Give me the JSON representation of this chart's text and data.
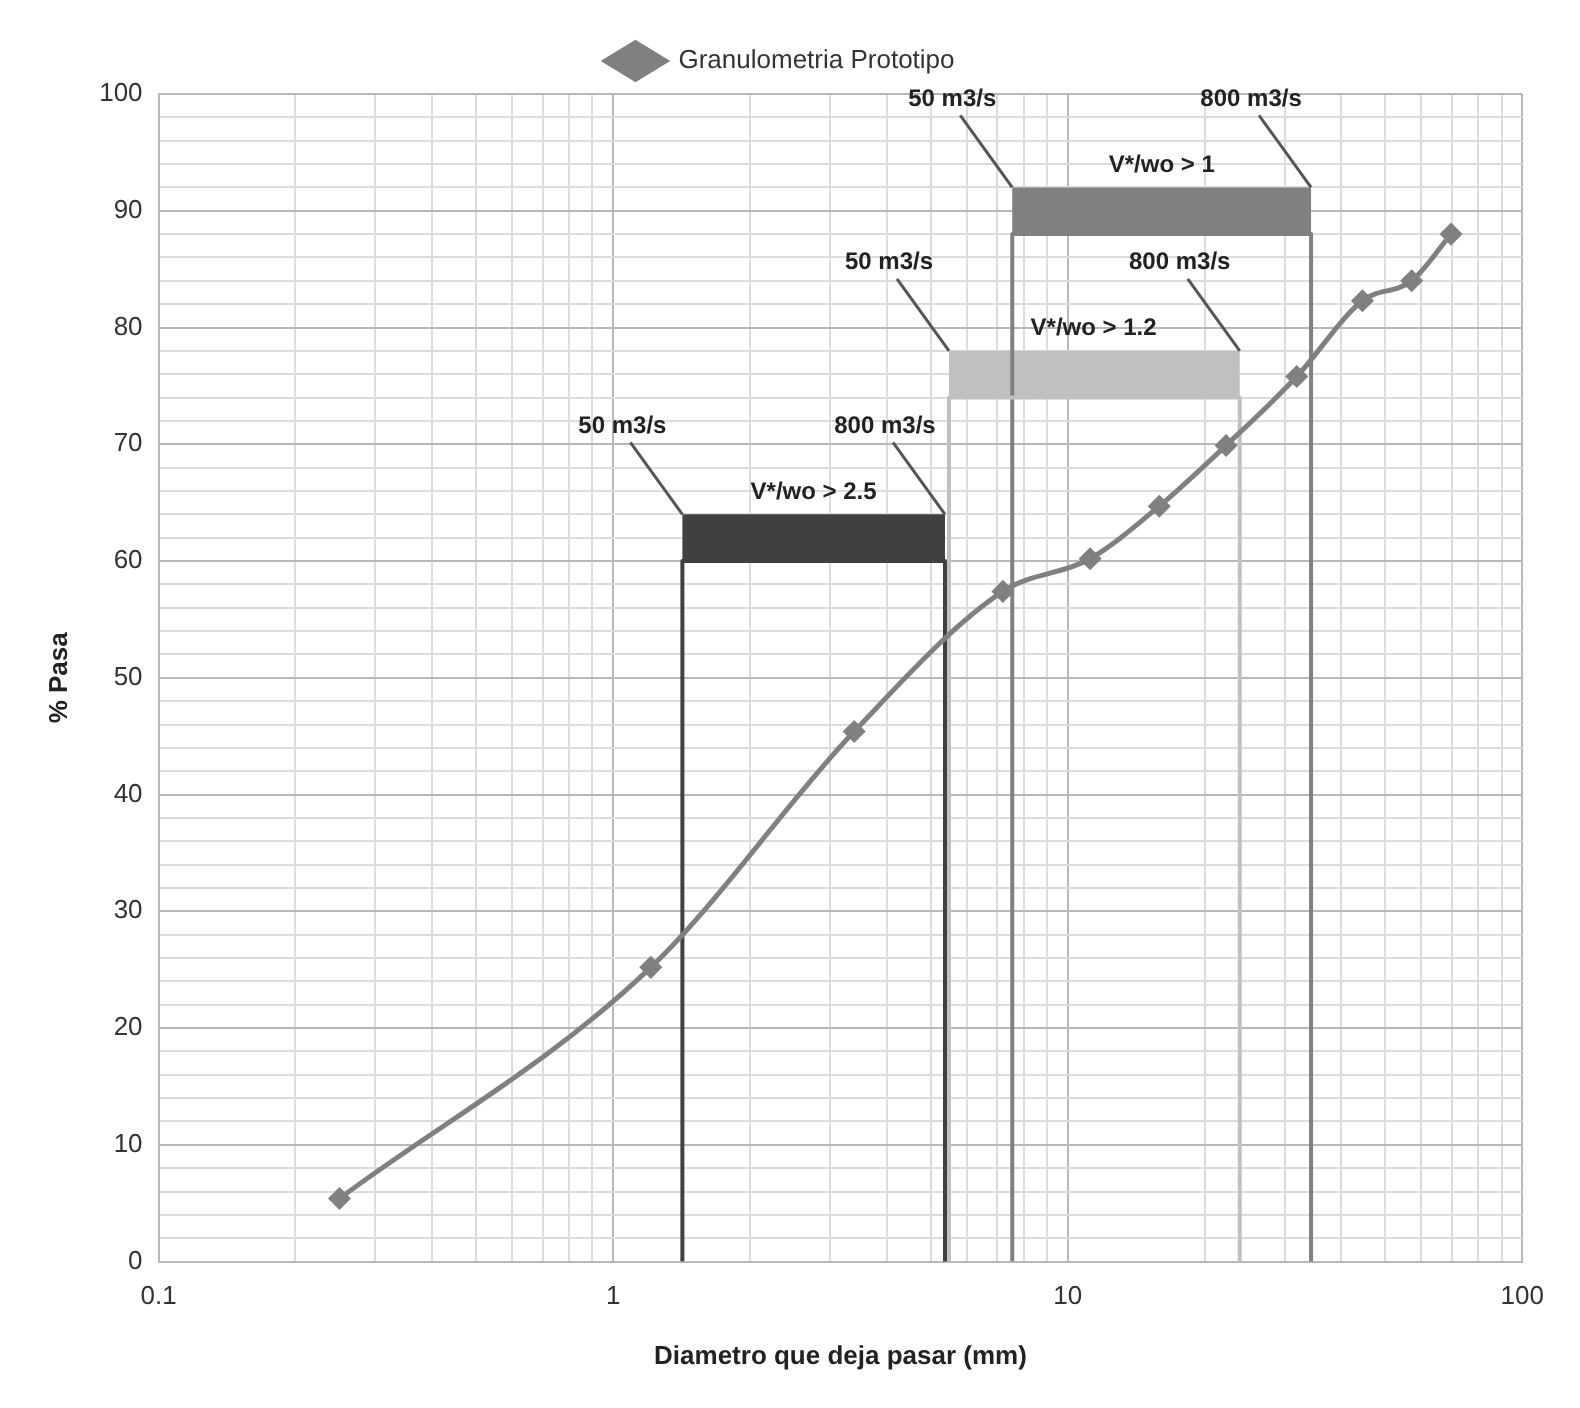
{
  "chart_data": {
    "type": "line",
    "xlabel": "Diametro que deja pasar (mm)",
    "ylabel": "% Pasa",
    "log": "x",
    "grid": true,
    "legend": "top",
    "marker": "diamond",
    "line_style": "solid",
    "xlim": [
      0.1,
      100
    ],
    "ylim": [
      0,
      100
    ],
    "xticks": [
      0.1,
      {
        "value": 0.2,
        "label": null
      },
      {
        "value": 0.3,
        "label": null
      },
      {
        "value": 0.4,
        "label": null
      },
      {
        "value": 0.5,
        "label": null
      },
      {
        "value": 0.6,
        "label": null
      },
      {
        "value": 0.7,
        "label": null
      },
      {
        "value": 0.8,
        "label": null
      },
      {
        "value": 0.9,
        "label": null
      },
      1,
      {
        "value": 2,
        "label": null
      },
      {
        "value": 3,
        "label": null
      },
      {
        "value": 4,
        "label": null
      },
      {
        "value": 5,
        "label": null
      },
      {
        "value": 6,
        "label": null
      },
      {
        "value": 7,
        "label": null
      },
      {
        "value": 8,
        "label": null
      },
      {
        "value": 9,
        "label": null
      },
      10,
      {
        "value": 20,
        "label": null
      },
      {
        "value": 30,
        "label": null
      },
      {
        "value": 40,
        "label": null
      },
      {
        "value": 50,
        "label": null
      },
      {
        "value": 60,
        "label": null
      },
      {
        "value": 70,
        "label": null
      },
      {
        "value": 80,
        "label": null
      },
      {
        "value": 90,
        "label": null
      },
      100
    ],
    "yticks": [
      0,
      {
        "value": 2,
        "label": null
      },
      {
        "value": 4,
        "label": null
      },
      {
        "value": 6,
        "label": null
      },
      {
        "value": 8,
        "label": null
      },
      10,
      {
        "value": 12,
        "label": null
      },
      {
        "value": 14,
        "label": null
      },
      {
        "value": 16,
        "label": null
      },
      {
        "value": 18,
        "label": null
      },
      20,
      {
        "value": 22,
        "label": null
      },
      {
        "value": 24,
        "label": null
      },
      {
        "value": 26,
        "label": null
      },
      {
        "value": 28,
        "label": null
      },
      30,
      {
        "value": 32,
        "label": null
      },
      {
        "value": 34,
        "label": null
      },
      {
        "value": 36,
        "label": null
      },
      {
        "value": 38,
        "label": null
      },
      40,
      {
        "value": 42,
        "label": null
      },
      {
        "value": 44,
        "label": null
      },
      {
        "value": 46,
        "label": null
      },
      {
        "value": 48,
        "label": null
      },
      50,
      {
        "value": 52,
        "label": null
      },
      {
        "value": 54,
        "label": null
      },
      {
        "value": 56,
        "label": null
      },
      {
        "value": 58,
        "label": null
      },
      60,
      {
        "value": 62,
        "label": null
      },
      {
        "value": 64,
        "label": null
      },
      {
        "value": 66,
        "label": null
      },
      {
        "value": 68,
        "label": null
      },
      70,
      {
        "value": 72,
        "label": null
      },
      {
        "value": 74,
        "label": null
      },
      {
        "value": 76,
        "label": null
      },
      {
        "value": 78,
        "label": null
      },
      80,
      {
        "value": 82,
        "label": null
      },
      {
        "value": 84,
        "label": null
      },
      {
        "value": 86,
        "label": null
      },
      {
        "value": 88,
        "label": null
      },
      90,
      {
        "value": 92,
        "label": null
      },
      {
        "value": 94,
        "label": null
      },
      {
        "value": 96,
        "label": null
      },
      {
        "value": 98,
        "label": null
      },
      100
    ],
    "series": [
      {
        "name": "Granulometria Prototipo",
        "color": "#808080",
        "x": [
          0.25,
          1.21,
          3.39,
          7.2,
          11.2,
          15.9,
          22.3,
          31.9,
          44.5,
          57.1,
          69.7
        ],
        "values": [
          5.4,
          25.2,
          45.4,
          57.4,
          60.2,
          64.7,
          69.9,
          75.8,
          82.3,
          84.0,
          88.0
        ]
      },
      {
        "marker": "none",
        "color": "#404040",
        "x": [
          1.42,
          1.42,
          5.37,
          5.37
        ],
        "values": [
          0,
          60,
          60,
          0
        ],
        "lower": [
          null,
          60,
          60,
          null
        ],
        "upper": [
          null,
          64,
          64,
          null
        ]
      },
      {
        "marker": "none",
        "color": "#c0c0c0",
        "x": [
          5.48,
          5.48,
          23.9,
          23.9
        ],
        "values": [
          0,
          74,
          74,
          0
        ],
        "lower": [
          null,
          74,
          74,
          null
        ],
        "upper": [
          null,
          78,
          78,
          null
        ]
      },
      {
        "marker": "none",
        "color": "#808080",
        "x": [
          7.55,
          7.55,
          34.3,
          34.3
        ],
        "values": [
          0,
          88,
          88,
          0
        ],
        "lower": [
          null,
          88,
          88,
          null
        ],
        "upper": [
          null,
          92,
          92,
          null
        ]
      }
    ],
    "annotations": [
      {
        "text": "50 m3/s",
        "x": 1.42,
        "y": 64
      },
      {
        "text": "800 m3/s",
        "x": 5.37,
        "y": 64
      },
      {
        "text": "V*/wo > 2.5",
        "x": 2.76,
        "y": 64
      },
      {
        "text": "50 m3/s",
        "x": 5.48,
        "y": 78
      },
      {
        "text": "800 m3/s",
        "x": 23.9,
        "y": 78
      },
      {
        "text": "V*/wo > 1.2",
        "x": 11.4,
        "y": 78
      },
      {
        "text": "50 m3/s",
        "x": 7.55,
        "y": 92
      },
      {
        "text": "800 m3/s",
        "x": 34.3,
        "y": 92
      },
      {
        "text": "V*/wo > 1",
        "x": 16.1,
        "y": 92
      }
    ]
  }
}
